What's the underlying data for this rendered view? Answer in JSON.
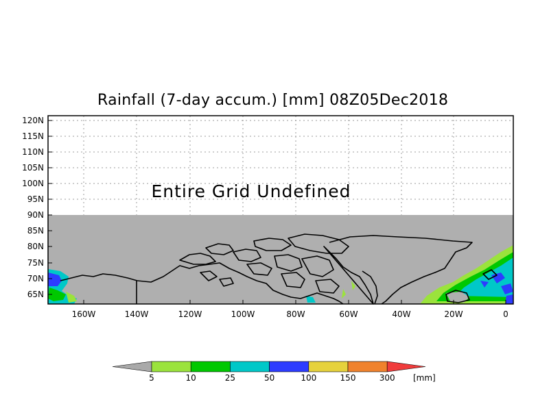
{
  "title": "Rainfall (7-day accum.) [mm] 08Z05Dec2018",
  "undefined_message": "Entire Grid Undefined",
  "lat_labels": [
    "120N",
    "115N",
    "110N",
    "105N",
    "100N",
    "95N",
    "90N",
    "85N",
    "80N",
    "75N",
    "70N",
    "65N"
  ],
  "lon_labels": [
    "160W",
    "140W",
    "120W",
    "100W",
    "80W",
    "60W",
    "40W",
    "20W",
    "0"
  ],
  "colorbar": {
    "thresholds": [
      "5",
      "10",
      "25",
      "50",
      "100",
      "150",
      "300"
    ],
    "unit": "[mm]",
    "colors": {
      "below": "#a9a9a9",
      "c5_10": "#9be33c",
      "c10_25": "#00c800",
      "c25_50": "#00c8c8",
      "c50_100": "#2d3cff",
      "c100_150": "#e6d23c",
      "c150_300": "#f0822d",
      "above": "#f03c3c"
    }
  },
  "colors": {
    "land_ocean_gray": "#afafaf",
    "coastline": "#000000",
    "grid_dots": "#9b9b9b"
  }
}
